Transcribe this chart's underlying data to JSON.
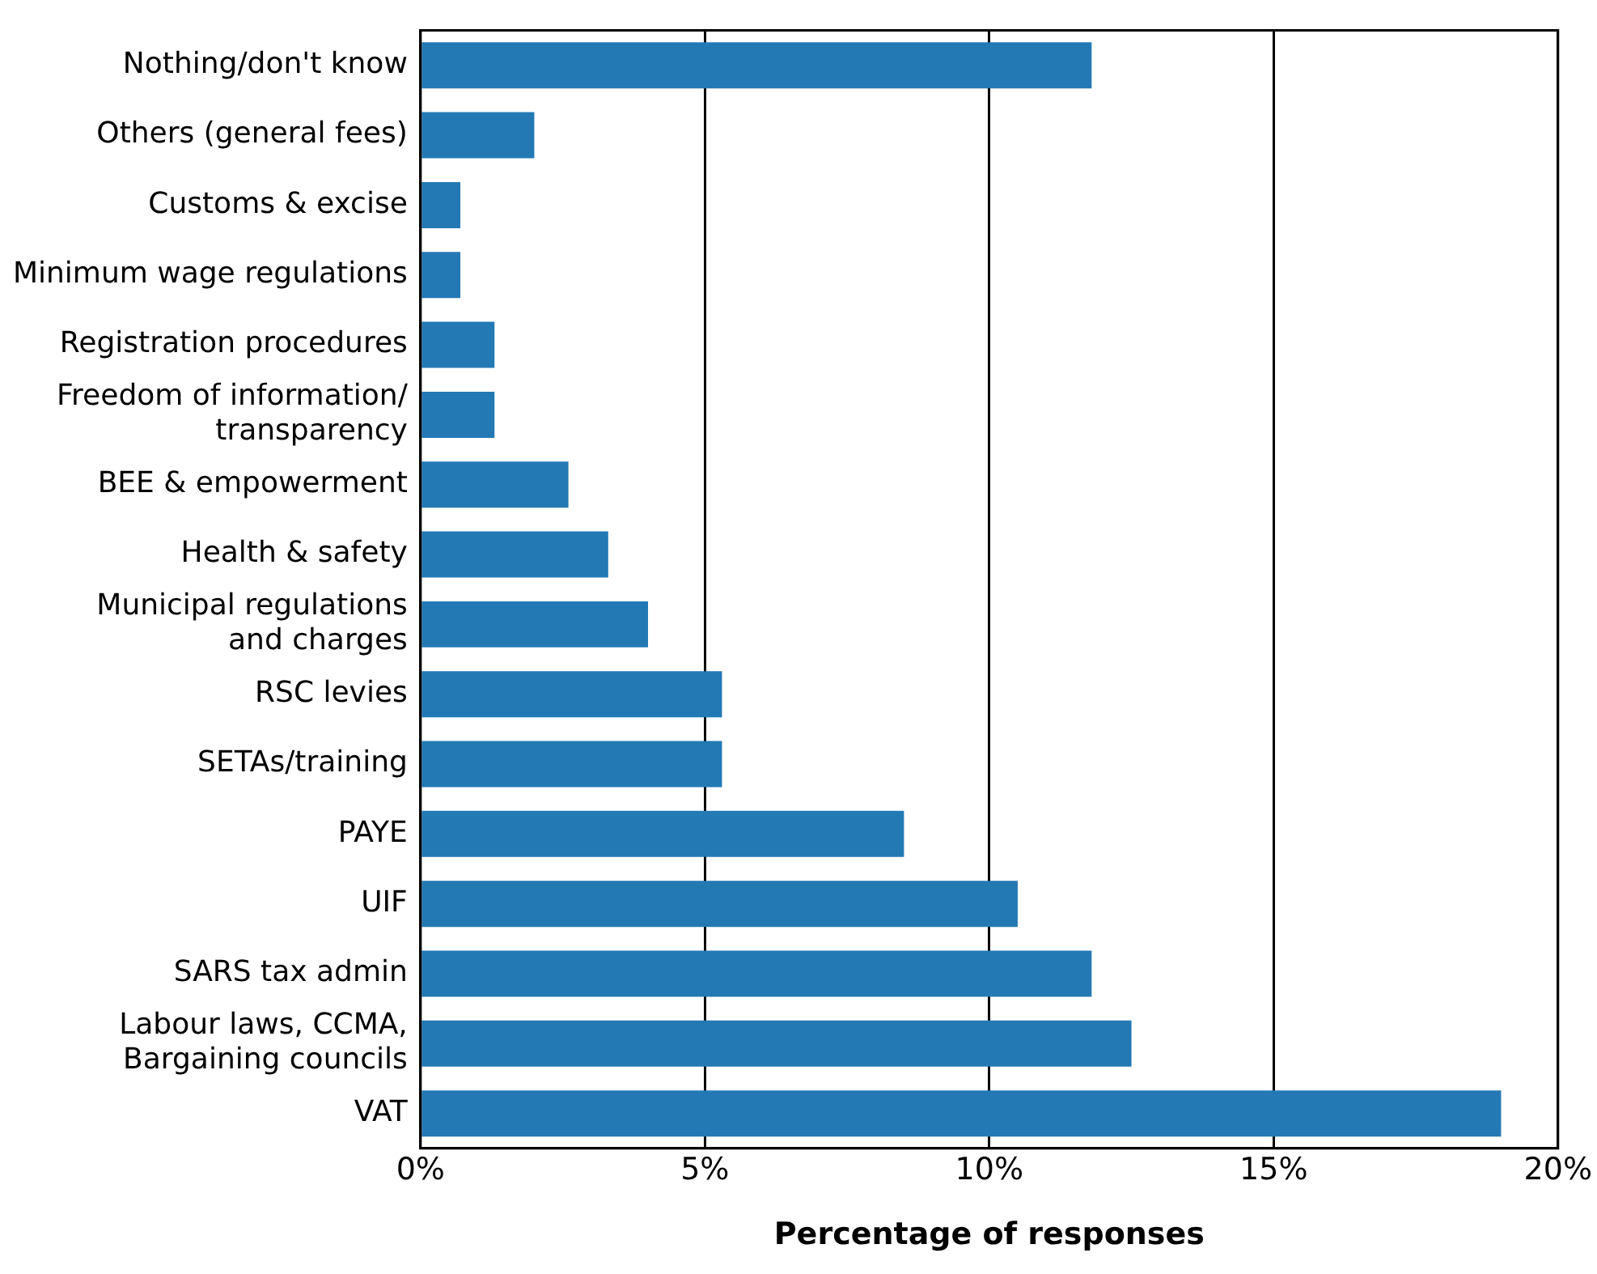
{
  "chart_data": {
    "type": "bar",
    "orientation": "horizontal",
    "xlabel": "Percentage of responses",
    "categories": [
      "Nothing/don't know",
      "Others (general fees)",
      "Customs & excise",
      "Minimum wage regulations",
      "Registration procedures",
      "Freedom of information/\ntransparency",
      "BEE & empowerment",
      "Health & safety",
      "Municipal regulations\nand charges",
      "RSC levies",
      "SETAs/training",
      "PAYE",
      "UIF",
      "SARS tax admin",
      "Labour laws, CCMA,\nBargaining councils",
      "VAT"
    ],
    "values": [
      11.8,
      2.0,
      0.7,
      0.7,
      1.3,
      1.3,
      2.6,
      3.3,
      4.0,
      5.3,
      5.3,
      8.5,
      10.5,
      11.8,
      12.5,
      19.0
    ],
    "color": "#2379b4",
    "xlim": [
      0,
      20
    ],
    "xticks": [
      {
        "value": 0,
        "label": "0%"
      },
      {
        "value": 5,
        "label": "5%"
      },
      {
        "value": 10,
        "label": "10%"
      },
      {
        "value": 15,
        "label": "15%"
      },
      {
        "value": 20,
        "label": "20%"
      }
    ],
    "grid": "x"
  }
}
